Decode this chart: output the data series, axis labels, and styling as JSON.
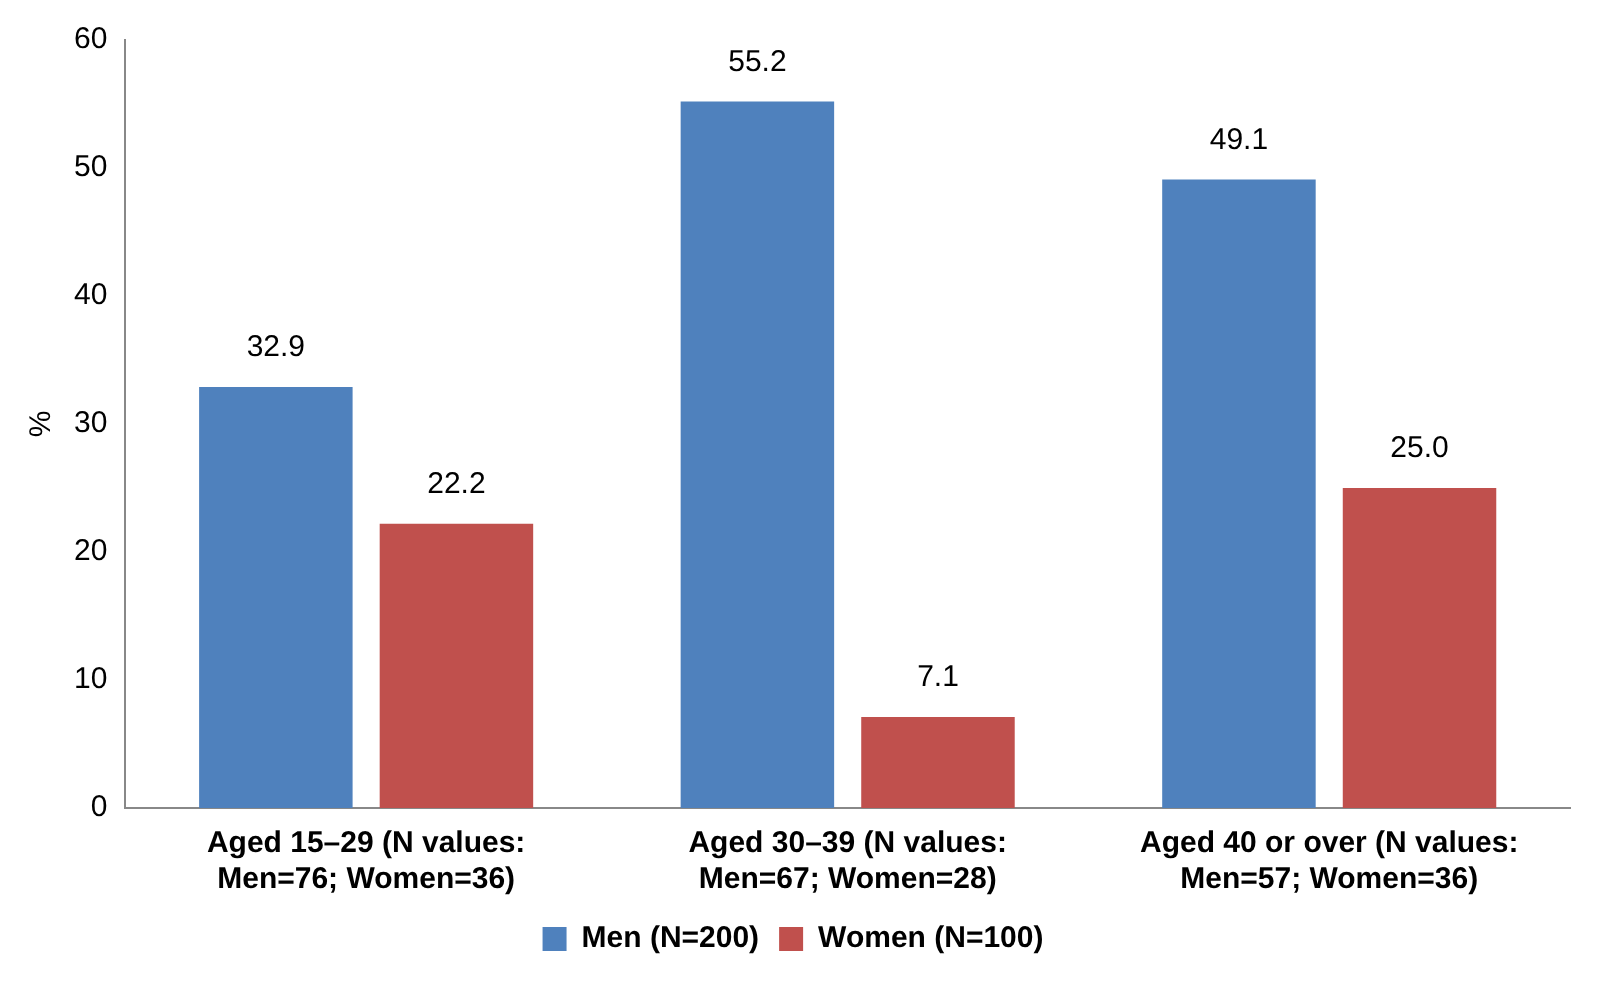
{
  "chart_data": {
    "type": "bar",
    "ylabel": "%",
    "categories": [
      "Aged 15–29 (N values: Men=76; Women=36)",
      "Aged 30–39 (N values: Men=67; Women=28)",
      "Aged 40 or over (N values: Men=57; Women=36)"
    ],
    "series": [
      {
        "name": "Men (N=200)",
        "color": "#4f81bd",
        "values": [
          32.9,
          55.2,
          49.1
        ],
        "value_labels": [
          "32.9",
          "55.2",
          "49.1"
        ]
      },
      {
        "name": "Women (N=100)",
        "color": "#c0504d",
        "values": [
          22.2,
          7.1,
          25.0
        ],
        "value_labels": [
          "22.2",
          "7.1",
          "25.0"
        ]
      }
    ],
    "ylim": [
      0,
      60
    ],
    "yticks": [
      0,
      10,
      20,
      30,
      40,
      50,
      60
    ],
    "grid": false,
    "legend": "bottom"
  }
}
